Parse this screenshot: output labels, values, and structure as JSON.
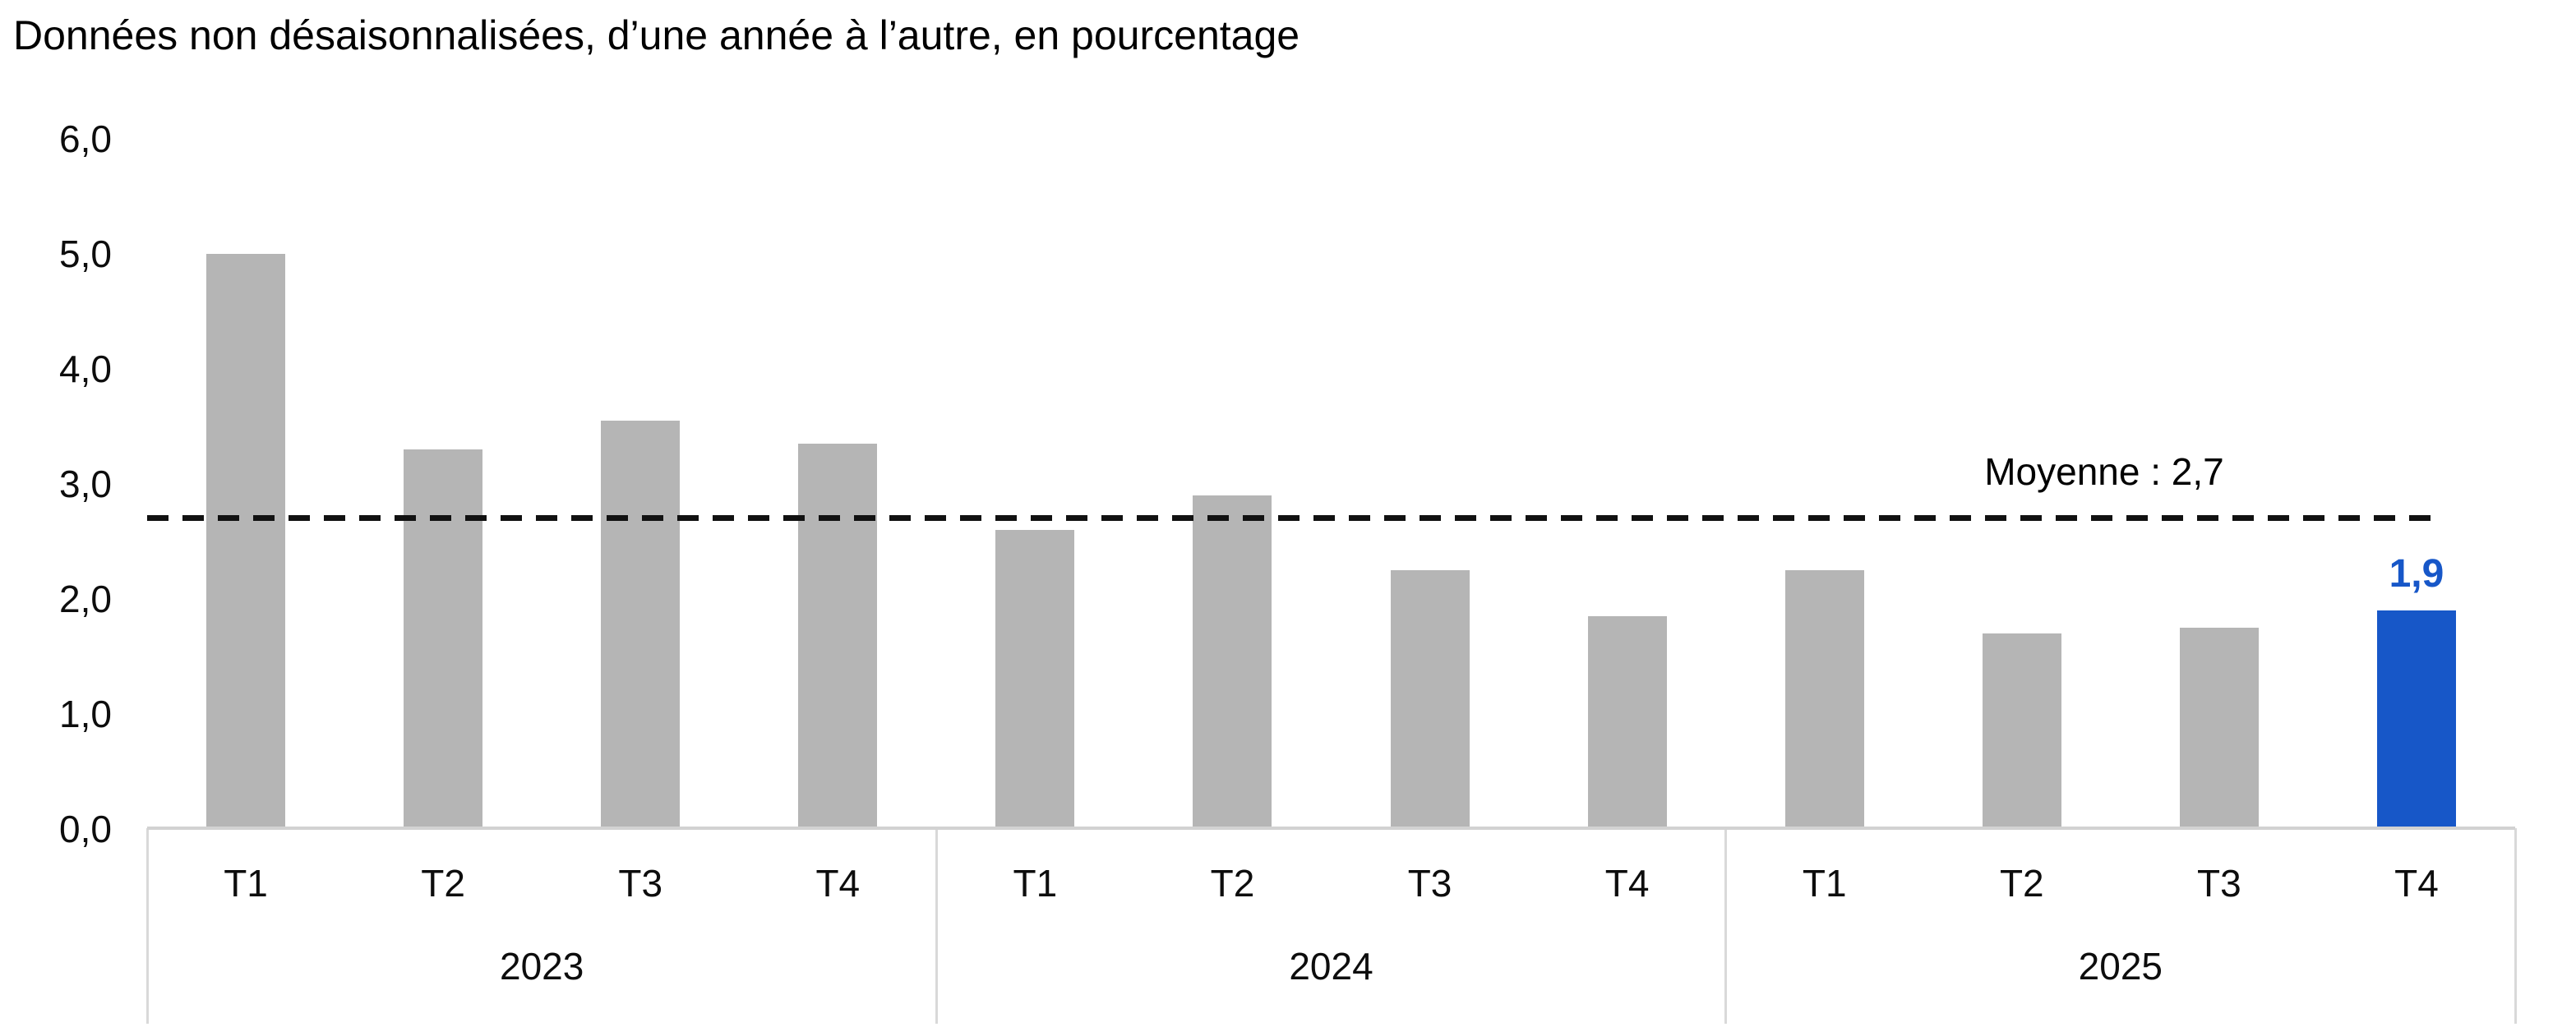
{
  "title": "Données non désaisonnalisées, d’une année à l’autre, en pourcentage",
  "chart_data": {
    "type": "bar",
    "title": "Données non désaisonnalisées, d’une année à l’autre, en pourcentage",
    "ylim": [
      0,
      6
    ],
    "y_ticks": [
      {
        "label": "6,0",
        "value": 6
      },
      {
        "label": "5,0",
        "value": 5
      },
      {
        "label": "4,0",
        "value": 4
      },
      {
        "label": "3,0",
        "value": 3
      },
      {
        "label": "2,0",
        "value": 2
      },
      {
        "label": "1,0",
        "value": 1
      },
      {
        "label": "0,0",
        "value": 0
      }
    ],
    "groups": [
      {
        "year": "2023",
        "quarters": [
          "T1",
          "T2",
          "T3",
          "T4"
        ],
        "values": [
          5.0,
          3.3,
          3.55,
          3.35
        ]
      },
      {
        "year": "2024",
        "quarters": [
          "T1",
          "T2",
          "T3",
          "T4"
        ],
        "values": [
          2.6,
          2.9,
          2.25,
          1.85
        ]
      },
      {
        "year": "2025",
        "quarters": [
          "T1",
          "T2",
          "T3",
          "T4"
        ],
        "values": [
          2.25,
          1.7,
          1.75,
          1.9
        ]
      }
    ],
    "bar_color": "#b5b5b5",
    "highlight": {
      "year": "2025",
      "quarter": "T4",
      "value": 1.9,
      "label": "1,9",
      "color": "#1757c8"
    },
    "average_line": {
      "value": 2.7,
      "label": "Moyenne : 2,7",
      "color": "#111111",
      "style": "dashed"
    },
    "axis_color": "#d2d2d2",
    "grid": false,
    "legend": false
  }
}
